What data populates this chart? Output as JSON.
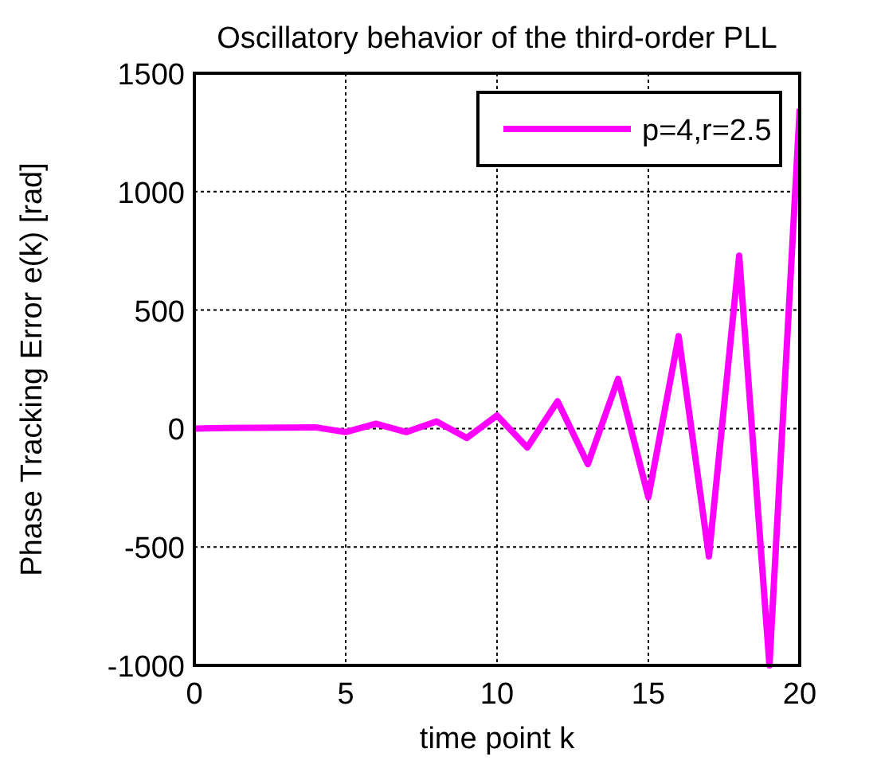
{
  "chart_data": {
    "type": "line",
    "title": "Oscillatory behavior of the third-order PLL",
    "xlabel": "time point k",
    "ylabel": "Phase Tracking Error e(k)  [rad]",
    "x": [
      0,
      1,
      2,
      3,
      4,
      5,
      6,
      7,
      8,
      9,
      10,
      11,
      12,
      13,
      14,
      15,
      16,
      17,
      18,
      19,
      20
    ],
    "series": [
      {
        "name": "p=4,r=2.5",
        "color": "#ff00ff",
        "values": [
          0,
          2,
          3,
          4,
          5,
          -15,
          20,
          -15,
          30,
          -40,
          55,
          -80,
          115,
          -150,
          210,
          -290,
          390,
          -540,
          730,
          -1000,
          1350
        ]
      }
    ],
    "xlim": [
      0,
      20
    ],
    "xticks": [
      0,
      5,
      10,
      15,
      20
    ],
    "ylim": [
      -1000,
      1500
    ],
    "yticks": [
      -1000,
      -500,
      0,
      500,
      1000,
      1500
    ],
    "grid": true,
    "legend": "top right",
    "line_style": "solid",
    "marker": "none"
  }
}
